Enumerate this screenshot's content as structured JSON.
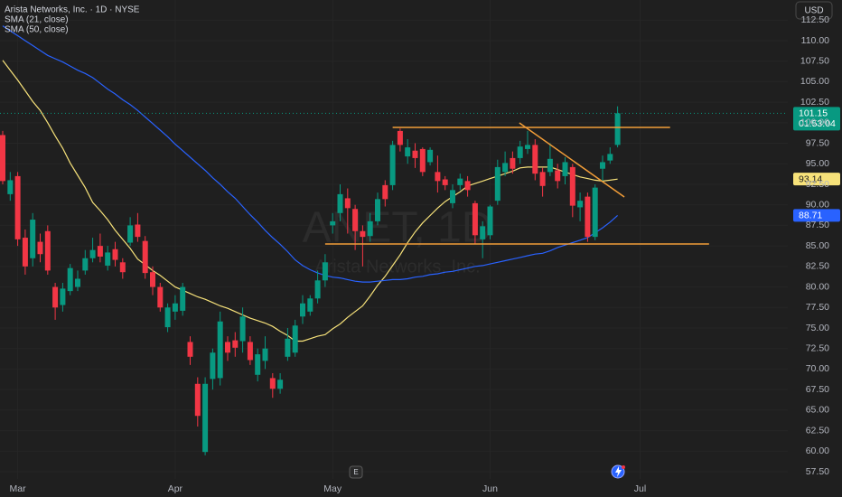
{
  "chart_data": {
    "type": "candlestick",
    "title": "Arista Networks, Inc. · 1D · NYSE",
    "currency": "USD",
    "watermark": "ANET, 1D",
    "watermark_subtitle": "Arista Networks, Inc.",
    "countdown": "01:53:04",
    "earnings_marker": "E",
    "up_color": "#089981",
    "down_color": "#f23645",
    "grid": true,
    "last_price_line": true,
    "ylim": [
      56.62,
      114.95
    ],
    "yticks": [
      {
        "value": 57.5,
        "label": "57.50"
      },
      {
        "value": 60,
        "label": "60.00"
      },
      {
        "value": 62.5,
        "label": "62.50"
      },
      {
        "value": 65,
        "label": "65.00"
      },
      {
        "value": 67.5,
        "label": "67.50"
      },
      {
        "value": 70,
        "label": "70.00"
      },
      {
        "value": 72.5,
        "label": "72.50"
      },
      {
        "value": 75,
        "label": "75.00"
      },
      {
        "value": 77.5,
        "label": "77.50"
      },
      {
        "value": 80,
        "label": "80.00"
      },
      {
        "value": 82.5,
        "label": "82.50"
      },
      {
        "value": 85,
        "label": "85.00"
      },
      {
        "value": 87.5,
        "label": "87.50"
      },
      {
        "value": 90,
        "label": "90.00"
      },
      {
        "value": 92.5,
        "label": "92.50"
      },
      {
        "value": 95,
        "label": "95.00"
      },
      {
        "value": 97.5,
        "label": "97.50"
      },
      {
        "value": 100,
        "label": "100.00"
      },
      {
        "value": 102.5,
        "label": "102.50"
      },
      {
        "value": 105,
        "label": "105.00"
      },
      {
        "value": 107.5,
        "label": "107.50"
      },
      {
        "value": 110,
        "label": "110.00"
      },
      {
        "value": 112.5,
        "label": "112.50"
      }
    ],
    "categories": [
      null,
      null,
      "Mar",
      null,
      null,
      null,
      null,
      null,
      null,
      null,
      null,
      null,
      null,
      null,
      null,
      null,
      null,
      null,
      null,
      null,
      null,
      null,
      null,
      "Apr",
      null,
      null,
      null,
      null,
      null,
      null,
      null,
      null,
      null,
      null,
      null,
      null,
      null,
      null,
      null,
      null,
      null,
      null,
      null,
      null,
      "May",
      null,
      null,
      null,
      null,
      null,
      null,
      null,
      null,
      null,
      null,
      null,
      null,
      null,
      null,
      null,
      null,
      null,
      null,
      null,
      null,
      "Jun",
      null,
      null,
      null,
      null,
      null,
      null,
      null,
      null,
      null,
      null,
      null,
      null,
      null,
      null,
      null,
      null,
      null,
      null,
      null,
      "Jul"
    ],
    "open": [
      98.5,
      91.3,
      93.5,
      86,
      83.5,
      85.5,
      86.8,
      80,
      77.8,
      79.5,
      80,
      82,
      83.5,
      85,
      82.6,
      84.6,
      83,
      85.4,
      87.6,
      85.6,
      81.8,
      80,
      75.1,
      77,
      77.1,
      73.3,
      68.2,
      59.9,
      68.8,
      68.9,
      73.3,
      73.5,
      73.4,
      73.3,
      69.3,
      71,
      68.9,
      67.6,
      71.5,
      72,
      76.4,
      77,
      78.6,
      80.8,
      87.5,
      89,
      90.8,
      89.5,
      86.8,
      86.2,
      88,
      92.4,
      92.4,
      99,
      95.9,
      96.6,
      96.8,
      95.2,
      94,
      93.1,
      90.2,
      92.4,
      92.9,
      90.2,
      85.8,
      86.3,
      90.5,
      94,
      95.7,
      95.7,
      96.8,
      97.3,
      94,
      94,
      94.2,
      93.5,
      94.6,
      89.7,
      91,
      86.1,
      94.4,
      95.4,
      97.3,
      null,
      null,
      null
    ],
    "high": [
      99,
      94,
      94,
      87,
      89,
      86.5,
      87.5,
      80.5,
      80.5,
      82.8,
      82,
      84.5,
      86,
      86.5,
      85,
      85.5,
      83.5,
      88.5,
      89,
      86.2,
      82.5,
      80.5,
      78,
      79,
      80.5,
      74,
      69,
      69,
      72.5,
      77,
      74,
      74.5,
      77.5,
      74,
      72.5,
      74,
      69.5,
      69.5,
      75,
      76,
      79,
      79,
      82,
      84,
      89,
      92.5,
      92,
      90,
      87.5,
      89,
      91.5,
      93,
      97.8,
      99.3,
      98,
      97.5,
      97,
      97,
      96,
      93.5,
      92.5,
      93.8,
      93.5,
      90.5,
      88,
      90,
      95.5,
      96.5,
      96.5,
      97.8,
      99,
      98,
      94.5,
      97.5,
      95,
      95.8,
      95,
      91.5,
      91.5,
      92.5,
      96,
      97,
      102,
      null,
      null,
      null
    ],
    "low": [
      92.5,
      90.5,
      85,
      81.5,
      82.5,
      83,
      81.5,
      76,
      77,
      79,
      79.5,
      81.5,
      83,
      83,
      82,
      82.5,
      81,
      85,
      85.5,
      81,
      79,
      77,
      74.5,
      76,
      76.5,
      70.5,
      63,
      59.5,
      67.5,
      68,
      71,
      71.5,
      72,
      70.5,
      68.5,
      70,
      66.5,
      67,
      71,
      71.5,
      75.5,
      76.5,
      78,
      80,
      86.5,
      88,
      86.5,
      84.5,
      82.5,
      85.5,
      87.5,
      89.8,
      91.8,
      96.5,
      95,
      94.5,
      93.5,
      94.8,
      91.5,
      91.8,
      89.6,
      91.8,
      91,
      85.2,
      83.5,
      85.8,
      90,
      93.5,
      93.8,
      95,
      96.2,
      93,
      91,
      93.5,
      92,
      92.5,
      88.5,
      88,
      85.5,
      85.7,
      92.9,
      95,
      97,
      null,
      null,
      null
    ],
    "close": [
      92.9,
      93,
      85.8,
      82.5,
      88.2,
      84,
      82,
      77.5,
      79.8,
      82.3,
      81,
      83.5,
      84.5,
      83.7,
      84.2,
      83.3,
      81.8,
      87.5,
      86.1,
      81.7,
      80,
      77.5,
      77.5,
      78,
      80,
      71.5,
      64.3,
      68.2,
      72,
      75.8,
      72,
      72.6,
      76.4,
      71.1,
      71.8,
      72.5,
      67.6,
      68.7,
      73.7,
      75.3,
      78,
      78.6,
      80.8,
      83,
      88,
      91.3,
      89.6,
      86.8,
      86.1,
      88,
      90.7,
      90.7,
      97.3,
      97.3,
      97,
      95.7,
      94,
      96.7,
      92.9,
      92.4,
      91.8,
      93.2,
      91.8,
      86.3,
      87.4,
      89.8,
      94.6,
      95.1,
      94.4,
      97.1,
      97.3,
      93.8,
      92.3,
      95.6,
      92.9,
      95.2,
      89.9,
      90.5,
      86.1,
      92.1,
      95.2,
      96.2,
      101.15,
      null,
      null,
      null
    ],
    "indicators": [
      {
        "name": "SMA (21, close)",
        "color": "#f7e27a",
        "text_color": "#1f1f1f",
        "values": [
          107.6,
          106.4,
          105.2,
          103.9,
          102.6,
          101.5,
          100.0,
          98.4,
          96.9,
          95.1,
          93.6,
          92.1,
          90.3,
          89.3,
          88.2,
          86.9,
          85.8,
          84.7,
          83.4,
          82.7,
          82.0,
          81.4,
          80.7,
          80.0,
          79.6,
          79.2,
          78.8,
          78.5,
          78.1,
          77.7,
          77.4,
          77.0,
          76.6,
          76.2,
          75.9,
          75.6,
          75.2,
          74.6,
          74.1,
          73.4,
          73.4,
          73.7,
          74.0,
          74.2,
          74.9,
          75.5,
          76.3,
          77.0,
          77.7,
          78.9,
          80.2,
          81.3,
          82.6,
          83.9,
          85.4,
          86.7,
          87.8,
          88.7,
          89.6,
          90.4,
          91.0,
          91.6,
          92.3,
          92.6,
          92.9,
          93.2,
          93.5,
          93.8,
          94.1,
          94.5,
          94.6,
          94.6,
          94.6,
          94.6,
          94.3,
          94.0,
          93.7,
          93.4,
          93.2,
          93.0,
          92.9,
          93.0,
          93.14,
          null,
          null,
          null
        ]
      },
      {
        "name": "SMA (50, close)",
        "color": "#2962ff",
        "text_color": "#ffffff",
        "values": [
          111.8,
          111.2,
          110.6,
          110.0,
          109.4,
          108.8,
          108.2,
          107.8,
          107.4,
          106.9,
          106.4,
          106.0,
          105.5,
          104.8,
          104.1,
          103.5,
          102.8,
          102.2,
          101.5,
          100.7,
          99.9,
          99.1,
          98.3,
          97.4,
          96.6,
          95.8,
          95.0,
          94.2,
          93.3,
          92.5,
          91.6,
          90.8,
          89.8,
          88.8,
          87.9,
          86.9,
          86.0,
          85.2,
          84.3,
          83.3,
          82.6,
          82.1,
          81.7,
          81.4,
          81.2,
          81.1,
          80.9,
          80.7,
          80.6,
          80.6,
          80.7,
          80.8,
          80.9,
          80.9,
          81.0,
          81.2,
          81.3,
          81.5,
          81.6,
          81.8,
          81.9,
          82.1,
          82.3,
          82.5,
          82.6,
          82.8,
          83.0,
          83.2,
          83.4,
          83.6,
          83.8,
          84.0,
          84.1,
          84.4,
          84.8,
          85.1,
          85.4,
          85.7,
          86.0,
          86.6,
          87.2,
          87.9,
          88.71,
          null,
          null,
          null
        ]
      }
    ],
    "trendlines": [
      {
        "color": "#f29d38",
        "y": [
          99.43,
          99.43
        ]
      },
      {
        "color": "#f29d38",
        "y": [
          85.24,
          85.24
        ]
      },
      {
        "color": "#f29d38",
        "y": [
          99.98,
          90.96
        ]
      }
    ]
  }
}
